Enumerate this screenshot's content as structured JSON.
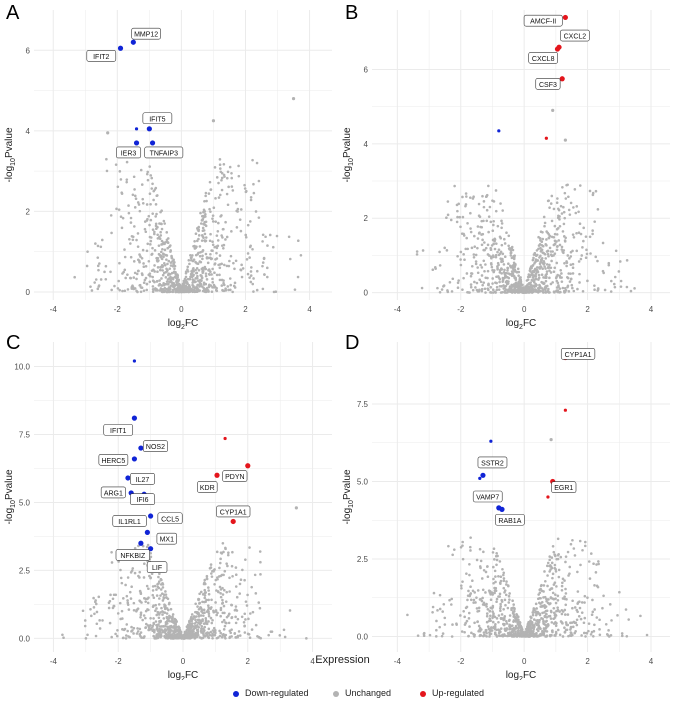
{
  "colors": {
    "down": "#1024d6",
    "up": "#e4151c",
    "unchanged": "#b3b3b3",
    "panel_bg": "#ffffff",
    "grid": "#ebebeb",
    "label_border": "#333333"
  },
  "legend": {
    "title": "Expression",
    "down_label": "Down-regulated",
    "unchanged_label": "Unchanged",
    "up_label": "Up-regulated"
  },
  "chart_data": [
    {
      "panel": "A",
      "type": "scatter",
      "xlabel": "log2FC",
      "ylabel": "-log10Pvalue",
      "xlim": [
        -4.6,
        4.7
      ],
      "ylim": [
        -0.2,
        7.0
      ],
      "xticks": [
        -4,
        -2,
        0,
        2,
        4
      ],
      "yticks": [
        0,
        2,
        4,
        6
      ],
      "cloud_max": 3.3,
      "points": [
        {
          "x": -1.5,
          "y": 6.2,
          "group": "down",
          "label": "MMP12"
        },
        {
          "x": -1.9,
          "y": 6.05,
          "group": "down",
          "label": "IFIT2"
        },
        {
          "x": -1.0,
          "y": 4.05,
          "group": "down",
          "label": "IFIT5"
        },
        {
          "x": -1.4,
          "y": 3.7,
          "group": "down",
          "label": "IER3"
        },
        {
          "x": -0.9,
          "y": 3.7,
          "group": "down",
          "label": "TNFAIP3"
        },
        {
          "x": -1.4,
          "y": 4.05,
          "group": "down",
          "label": ""
        },
        {
          "x": 1.0,
          "y": 4.25,
          "group": "unchanged",
          "label": ""
        },
        {
          "x": 3.5,
          "y": 4.8,
          "group": "unchanged",
          "label": ""
        },
        {
          "x": -2.3,
          "y": 3.95,
          "group": "unchanged",
          "label": ""
        }
      ],
      "labels": [
        {
          "text": "MMP12",
          "x": -1.1,
          "y": 6.4
        },
        {
          "text": "IFIT2",
          "x": -2.5,
          "y": 5.85
        },
        {
          "text": "IFIT5",
          "x": -0.75,
          "y": 4.3
        },
        {
          "text": "IER3",
          "x": -1.65,
          "y": 3.45
        },
        {
          "text": "TNFAIP3",
          "x": -0.55,
          "y": 3.45
        }
      ]
    },
    {
      "panel": "B",
      "type": "scatter",
      "xlabel": "log2FC",
      "ylabel": "-log10Pvalue",
      "xlim": [
        -4.8,
        4.6
      ],
      "ylim": [
        -0.2,
        7.6
      ],
      "xticks": [
        -4,
        -2,
        0,
        2,
        4
      ],
      "yticks": [
        0,
        2,
        4,
        6
      ],
      "cloud_max": 2.9,
      "points": [
        {
          "x": 1.3,
          "y": 7.4,
          "group": "up",
          "label": "AMCF-II"
        },
        {
          "x": 1.1,
          "y": 6.6,
          "group": "up",
          "label": "CXCL2"
        },
        {
          "x": 1.05,
          "y": 6.55,
          "group": "up",
          "label": "CXCL8"
        },
        {
          "x": 1.2,
          "y": 5.75,
          "group": "up",
          "label": "CSF3"
        },
        {
          "x": 0.7,
          "y": 4.15,
          "group": "up",
          "label": ""
        },
        {
          "x": -0.8,
          "y": 4.35,
          "group": "down",
          "label": ""
        },
        {
          "x": 0.9,
          "y": 4.9,
          "group": "unchanged",
          "label": ""
        },
        {
          "x": 1.3,
          "y": 4.1,
          "group": "unchanged",
          "label": ""
        }
      ],
      "labels": [
        {
          "text": "AMCF-II",
          "x": 0.6,
          "y": 7.3
        },
        {
          "text": "CXCL2",
          "x": 1.6,
          "y": 6.9
        },
        {
          "text": "CXCL8",
          "x": 0.6,
          "y": 6.3
        },
        {
          "text": "CSF3",
          "x": 0.75,
          "y": 5.6
        }
      ]
    },
    {
      "panel": "C",
      "type": "scatter",
      "xlabel": "log2FC",
      "ylabel": "-log10Pvalue",
      "xlim": [
        -4.6,
        4.6
      ],
      "ylim": [
        -0.5,
        10.9
      ],
      "xticks": [
        -4,
        -2,
        0,
        2,
        4
      ],
      "yticks": [
        0.0,
        2.5,
        5.0,
        7.5,
        10.0
      ],
      "cloud_max": 3.5,
      "points": [
        {
          "x": -1.5,
          "y": 10.2,
          "group": "down",
          "label": ""
        },
        {
          "x": -1.5,
          "y": 8.1,
          "group": "down",
          "label": "IFIT1"
        },
        {
          "x": -1.3,
          "y": 7.0,
          "group": "down",
          "label": "NOS2"
        },
        {
          "x": -1.5,
          "y": 6.6,
          "group": "down",
          "label": "HERC5"
        },
        {
          "x": -1.7,
          "y": 5.9,
          "group": "down",
          "label": "IL27"
        },
        {
          "x": -1.6,
          "y": 5.35,
          "group": "down",
          "label": "ARG1"
        },
        {
          "x": -1.2,
          "y": 5.3,
          "group": "down",
          "label": "IFI6"
        },
        {
          "x": -1.0,
          "y": 4.5,
          "group": "down",
          "label": "CCL5"
        },
        {
          "x": -1.3,
          "y": 4.4,
          "group": "down",
          "label": "IL1RL1"
        },
        {
          "x": -1.1,
          "y": 3.9,
          "group": "down",
          "label": "MX1"
        },
        {
          "x": -1.3,
          "y": 3.5,
          "group": "down",
          "label": "NFKBIZ"
        },
        {
          "x": -1.0,
          "y": 3.3,
          "group": "down",
          "label": "LIF"
        },
        {
          "x": 2.0,
          "y": 6.35,
          "group": "up",
          "label": "PDYN"
        },
        {
          "x": 1.05,
          "y": 6.0,
          "group": "up",
          "label": "KDR"
        },
        {
          "x": 1.3,
          "y": 7.35,
          "group": "up",
          "label": ""
        },
        {
          "x": 1.55,
          "y": 4.3,
          "group": "up",
          "label": "CYP1A1"
        },
        {
          "x": 3.5,
          "y": 4.8,
          "group": "unchanged",
          "label": ""
        }
      ],
      "labels": [
        {
          "text": "IFIT1",
          "x": -2.0,
          "y": 7.65
        },
        {
          "text": "NOS2",
          "x": -0.85,
          "y": 7.05
        },
        {
          "text": "HERC5",
          "x": -2.15,
          "y": 6.55
        },
        {
          "text": "IL27",
          "x": -1.25,
          "y": 5.85
        },
        {
          "text": "ARG1",
          "x": -2.15,
          "y": 5.35
        },
        {
          "text": "IFI6",
          "x": -1.25,
          "y": 5.1
        },
        {
          "text": "CCL5",
          "x": -0.4,
          "y": 4.4
        },
        {
          "text": "IL1RL1",
          "x": -1.65,
          "y": 4.3
        },
        {
          "text": "MX1",
          "x": -0.5,
          "y": 3.65
        },
        {
          "text": "NFKBIZ",
          "x": -1.55,
          "y": 3.05
        },
        {
          "text": "LIF",
          "x": -0.8,
          "y": 2.6
        },
        {
          "text": "PDYN",
          "x": 1.6,
          "y": 5.95
        },
        {
          "text": "KDR",
          "x": 0.75,
          "y": 5.55
        },
        {
          "text": "CYP1A1",
          "x": 1.55,
          "y": 4.65
        }
      ]
    },
    {
      "panel": "D",
      "type": "scatter",
      "xlabel": "log2FC",
      "ylabel": "-log10Pvalue",
      "xlim": [
        -4.8,
        4.6
      ],
      "ylim": [
        -0.5,
        9.5
      ],
      "xticks": [
        -4,
        -2,
        0,
        2,
        4
      ],
      "yticks": [
        0.0,
        2.5,
        5.0,
        7.5
      ],
      "cloud_max": 3.2,
      "points": [
        {
          "x": 1.3,
          "y": 9.0,
          "group": "up",
          "label": "CYP1A1"
        },
        {
          "x": 0.9,
          "y": 5.0,
          "group": "up",
          "label": "EGR1"
        },
        {
          "x": 0.75,
          "y": 4.5,
          "group": "up",
          "label": ""
        },
        {
          "x": 1.3,
          "y": 7.3,
          "group": "up",
          "label": ""
        },
        {
          "x": -1.3,
          "y": 5.2,
          "group": "down",
          "label": "SSTR2"
        },
        {
          "x": -1.4,
          "y": 5.1,
          "group": "down",
          "label": ""
        },
        {
          "x": -0.8,
          "y": 4.15,
          "group": "down",
          "label": "VAMP7"
        },
        {
          "x": -0.7,
          "y": 4.1,
          "group": "down",
          "label": "RAB1A"
        },
        {
          "x": -1.05,
          "y": 6.3,
          "group": "down",
          "label": ""
        },
        {
          "x": 0.85,
          "y": 6.35,
          "group": "unchanged",
          "label": ""
        }
      ],
      "labels": [
        {
          "text": "CYP1A1",
          "x": 1.7,
          "y": 9.1
        },
        {
          "text": "SSTR2",
          "x": -1.0,
          "y": 5.6
        },
        {
          "text": "EGR1",
          "x": 1.25,
          "y": 4.8
        },
        {
          "text": "VAMP7",
          "x": -1.15,
          "y": 4.5
        },
        {
          "text": "RAB1A",
          "x": -0.45,
          "y": 3.75
        }
      ]
    }
  ]
}
